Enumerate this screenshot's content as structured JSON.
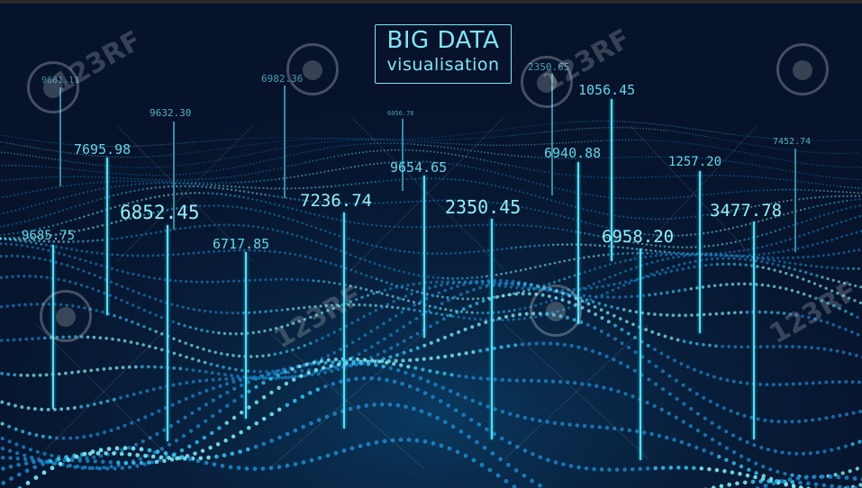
{
  "title": {
    "line1": "BIG DATA",
    "line2": "visualisation"
  },
  "data_labels": [
    "9685.75",
    "7695.98",
    "9632.30",
    "6852.45",
    "6717.85",
    "6982.36",
    "7236.74",
    "6056.78",
    "9654.65",
    "2350.45",
    "2350.65",
    "1056.45",
    "6940.88",
    "6958.20",
    "1257.20",
    "7452.74",
    "3477.78",
    "9681.11"
  ],
  "watermark": {
    "text": "123RF",
    "icon": "camera-aperture-icon"
  },
  "colors": {
    "background": "#06132b",
    "particles": "#1fb8ee",
    "highlight": "#6fe9f7",
    "label": "#5fd8ea"
  }
}
